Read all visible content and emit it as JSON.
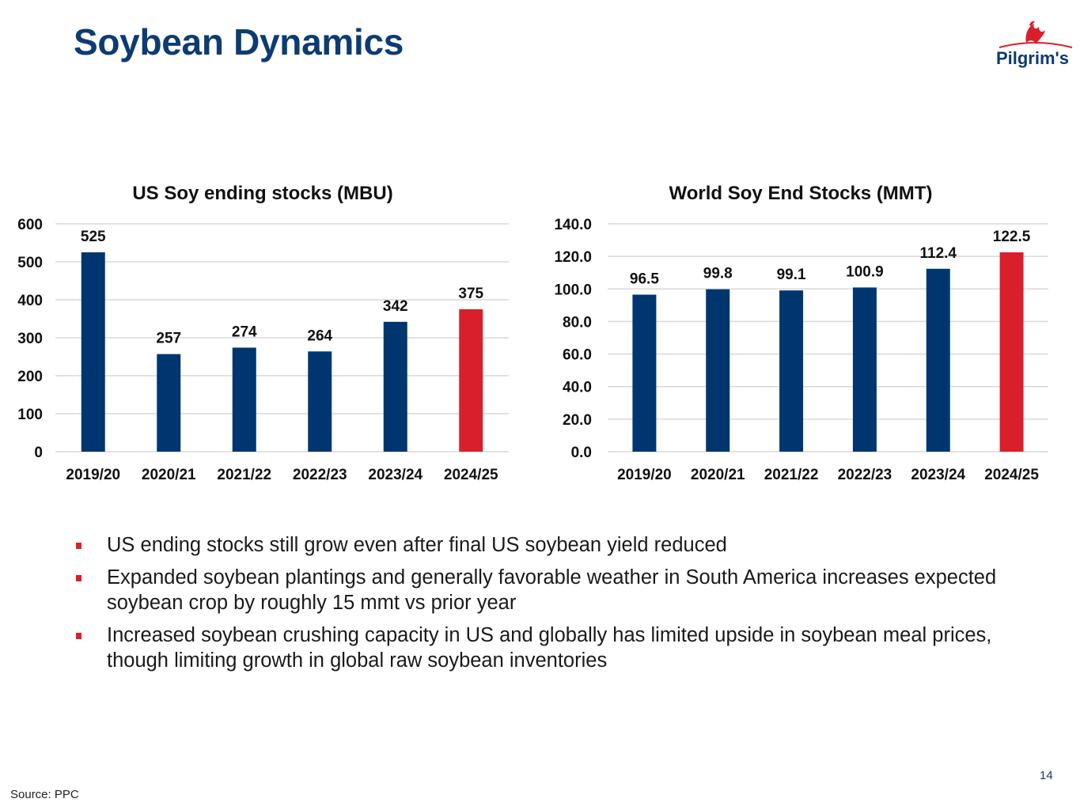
{
  "header": {
    "title": "Soybean Dynamics",
    "logo_text": "Pilgrim's"
  },
  "colors": {
    "primary": "#003670",
    "highlight": "#d91f2b",
    "title": "#0d3b73"
  },
  "chart_data": [
    {
      "type": "bar",
      "title": "US Soy ending stocks (MBU)",
      "categories": [
        "2019/20",
        "2020/21",
        "2021/22",
        "2022/23",
        "2023/24",
        "2024/25"
      ],
      "values": [
        525,
        257,
        274,
        264,
        342,
        375
      ],
      "data_labels": [
        "525",
        "257",
        "274",
        "264",
        "342",
        "375"
      ],
      "bar_colors": [
        "#003670",
        "#003670",
        "#003670",
        "#003670",
        "#003670",
        "#d91f2b"
      ],
      "ylim": [
        0,
        600
      ],
      "yticks": [
        "0",
        "100",
        "200",
        "300",
        "400",
        "500",
        "600"
      ],
      "xlabel": "",
      "ylabel": "",
      "grid": true,
      "legend": "none"
    },
    {
      "type": "bar",
      "title": "World Soy End Stocks (MMT)",
      "categories": [
        "2019/20",
        "2020/21",
        "2021/22",
        "2022/23",
        "2023/24",
        "2024/25"
      ],
      "values": [
        96.5,
        99.8,
        99.1,
        100.9,
        112.4,
        122.5
      ],
      "data_labels": [
        "96.5",
        "99.8",
        "99.1",
        "100.9",
        "112.4",
        "122.5"
      ],
      "bar_colors": [
        "#003670",
        "#003670",
        "#003670",
        "#003670",
        "#003670",
        "#d91f2b"
      ],
      "ylim": [
        0,
        140
      ],
      "yticks": [
        "0.0",
        "20.0",
        "40.0",
        "60.0",
        "80.0",
        "100.0",
        "120.0",
        "140.0"
      ],
      "xlabel": "",
      "ylabel": "",
      "grid": true,
      "legend": "none"
    }
  ],
  "bullets": [
    "US ending stocks still grow even after final US soybean yield reduced",
    "Expanded soybean plantings and generally favorable weather in South America increases expected soybean crop by roughly 15 mmt vs prior year",
    "Increased soybean crushing capacity in US and globally has limited upside in soybean meal prices, though limiting growth in global raw soybean inventories"
  ],
  "footer": {
    "source": "Source: PPC",
    "page_number": "14"
  }
}
